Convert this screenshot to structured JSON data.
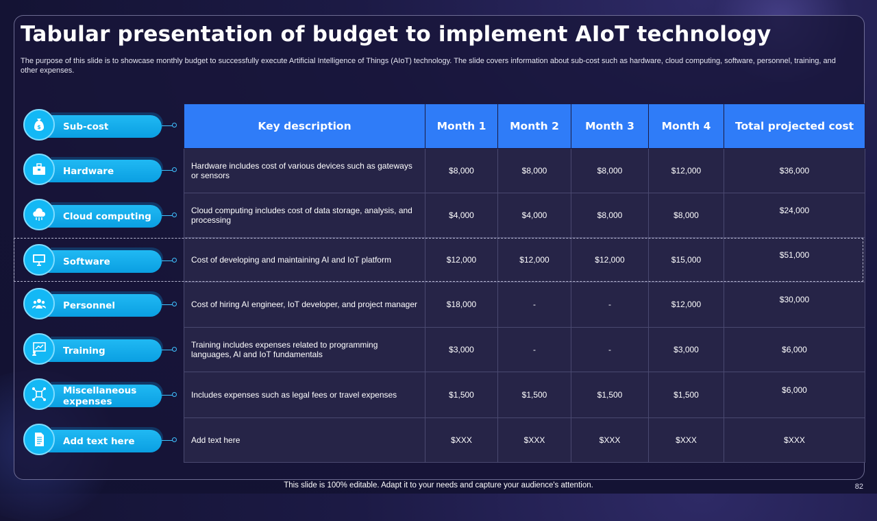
{
  "title": "Tabular presentation of budget to implement AIoT technology",
  "subtitle": "The purpose of this slide is to showcase monthly budget to successfully execute Artificial Intelligence of Things (AIoT) technology. The slide covers information about sub-cost such as hardware, cloud computing, software, personnel, training, and other expenses.",
  "pills": [
    {
      "label": "Sub-cost",
      "icon": "money-bag-icon"
    },
    {
      "label": "Hardware",
      "icon": "toolbox-icon"
    },
    {
      "label": "Cloud computing",
      "icon": "cloud-icon"
    },
    {
      "label": "Software",
      "icon": "monitor-icon"
    },
    {
      "label": "Personnel",
      "icon": "team-icon"
    },
    {
      "label": "Training",
      "icon": "presentation-icon"
    },
    {
      "label": "Miscellaneous expenses",
      "icon": "network-icon"
    },
    {
      "label": "Add text here",
      "icon": "document-icon"
    }
  ],
  "table": {
    "headers": [
      "Key description",
      "Month 1",
      "Month 2",
      "Month 3",
      "Month 4",
      "Total projected cost"
    ],
    "rows": [
      {
        "desc": "Hardware includes cost of various devices such as gateways or sensors",
        "m1": "$8,000",
        "m2": "$8,000",
        "m3": "$8,000",
        "m4": "$12,000",
        "total": "$36,000"
      },
      {
        "desc": "Cloud computing includes cost of data storage, analysis, and processing",
        "m1": "$4,000",
        "m2": "$4,000",
        "m3": "$8,000",
        "m4": "$8,000",
        "total": "$24,000"
      },
      {
        "desc": "Cost of developing and maintaining AI and IoT platform",
        "m1": "$12,000",
        "m2": "$12,000",
        "m3": "$12,000",
        "m4": "$15,000",
        "total": "$51,000"
      },
      {
        "desc": "Cost of hiring AI  engineer, IoT developer, and project manager",
        "m1": "$18,000",
        "m2": "-",
        "m3": "-",
        "m4": "$12,000",
        "total": "$30,000"
      },
      {
        "desc": "Training includes expenses related to programming languages, AI and IoT fundamentals",
        "m1": "$3,000",
        "m2": "-",
        "m3": "-",
        "m4": "$3,000",
        "total": "$6,000"
      },
      {
        "desc": "Includes expenses such as legal fees or travel expenses",
        "m1": "$1,500",
        "m2": "$1,500",
        "m3": "$1,500",
        "m4": "$1,500",
        "total": "$6,000"
      },
      {
        "desc": "Add text here",
        "m1": "$XXX",
        "m2": "$XXX",
        "m3": "$XXX",
        "m4": "$XXX",
        "total": "$XXX"
      }
    ]
  },
  "footer": "This slide is 100% editable. Adapt it to your needs and capture your audience's attention.",
  "page_number": "82",
  "colors": {
    "header_blue": "#2f7cf8",
    "pill_cyan": "#13b8f5",
    "background": "#141334"
  }
}
